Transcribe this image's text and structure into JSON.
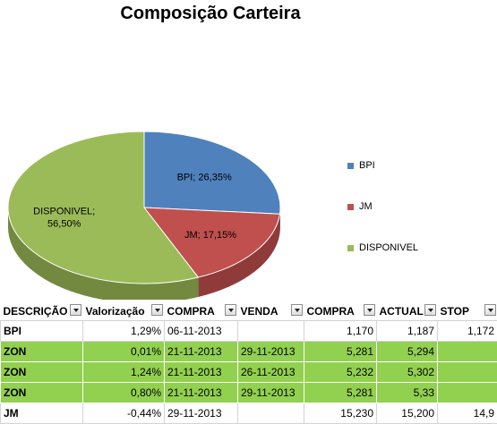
{
  "chart_data": {
    "type": "pie",
    "title": "Composição Carteira",
    "slices": [
      {
        "name": "BPI",
        "value": 26.35,
        "label": "BPI; 26,35%",
        "color": "#4f81bd",
        "side": "#3a6090"
      },
      {
        "name": "JM",
        "value": 17.15,
        "label": "JM; 17,15%",
        "color": "#c0504d",
        "side": "#8f3b39"
      },
      {
        "name": "DISPONIVEL",
        "value": 56.5,
        "label_lines": [
          "DISPONIVEL;",
          "56,50%"
        ],
        "color": "#9bbb59",
        "side": "#73893f"
      }
    ],
    "legend": [
      "BPI",
      "JM",
      "DISPONIVEL"
    ],
    "legend_position": "right"
  },
  "table": {
    "headers": [
      "DESCRIÇÃO",
      "Valorização",
      "COMPRA",
      "VENDA",
      "COMPRA",
      "ACTUAL",
      "STOP"
    ],
    "rows": [
      {
        "highlight": false,
        "cells": [
          "BPI",
          "1,29%",
          "06-11-2013",
          "",
          "1,170",
          "1,187",
          "1,172"
        ]
      },
      {
        "highlight": true,
        "cells": [
          "ZON",
          "0,01%",
          "21-11-2013",
          "29-11-2013",
          "5,281",
          "5,294",
          ""
        ]
      },
      {
        "highlight": true,
        "cells": [
          "ZON",
          "1,24%",
          "21-11-2013",
          "26-11-2013",
          "5,232",
          "5,302",
          ""
        ]
      },
      {
        "highlight": true,
        "cells": [
          "ZON",
          "0,80%",
          "21-11-2013",
          "29-11-2013",
          "5,281",
          "5,33",
          ""
        ]
      },
      {
        "highlight": false,
        "cells": [
          "JM",
          "-0,44%",
          "29-11-2013",
          "",
          "15,230",
          "15,200",
          "14,9"
        ]
      }
    ]
  }
}
